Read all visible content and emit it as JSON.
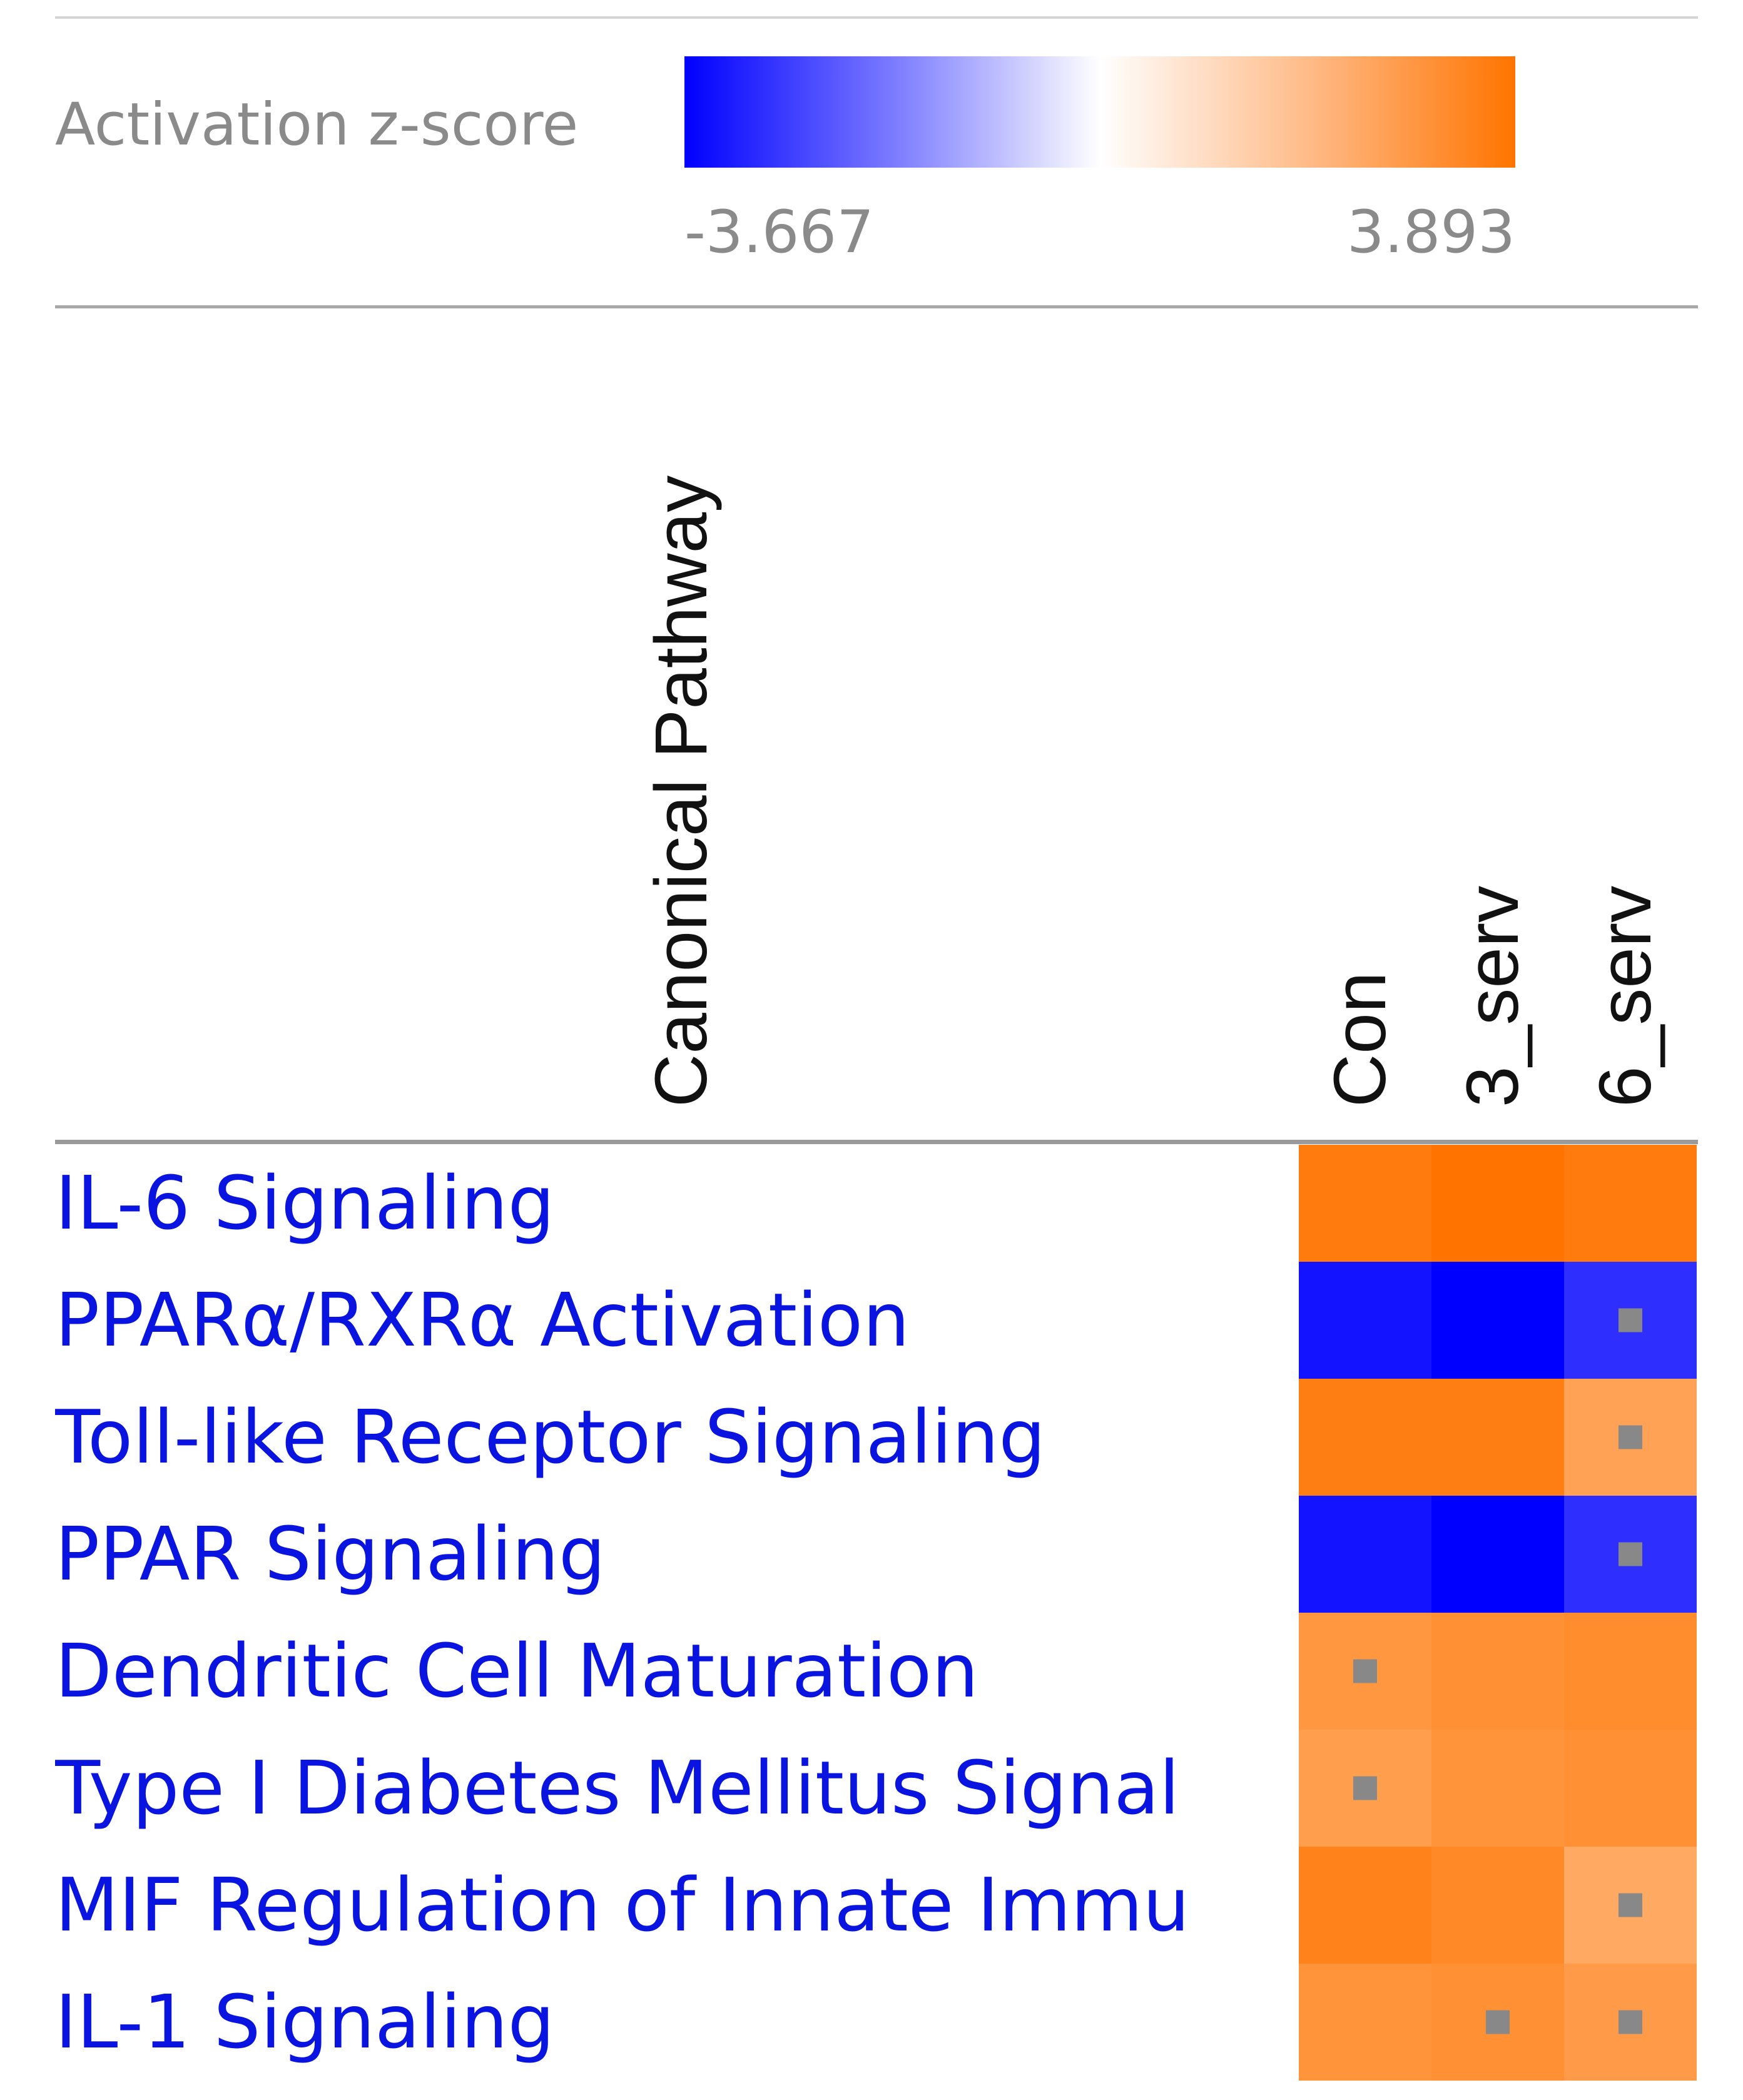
{
  "chart_data": {
    "type": "heatmap",
    "legend": {
      "title": "Activation z-score",
      "min_label": "-3.667",
      "max_label": "3.893",
      "min": -3.667,
      "max": 3.893,
      "low_color": "#0000ff",
      "mid_color": "#ffffff",
      "high_color": "#ff7400"
    },
    "row_axis_label": "Canonical Pathway",
    "columns": [
      "Con",
      "3_serv",
      "6_serv"
    ],
    "rows": [
      "IL-6 Signaling",
      "PPARα/RXRα Activation",
      "Toll-like Receptor Signaling",
      "PPAR Signaling",
      "Dendritic Cell Maturation",
      "Type I Diabetes Mellitus Signal",
      "MIF Regulation of Innate Immu",
      "IL-1 Signaling"
    ],
    "values": [
      [
        3.7,
        3.893,
        3.7
      ],
      [
        -3.4,
        -3.667,
        -3.0
      ],
      [
        3.6,
        3.6,
        2.6
      ],
      [
        -3.4,
        -3.667,
        -3.0
      ],
      [
        2.9,
        3.1,
        3.2
      ],
      [
        2.7,
        3.0,
        3.1
      ],
      [
        3.5,
        3.3,
        2.4
      ],
      [
        3.0,
        3.1,
        2.8
      ]
    ],
    "marked": [
      [
        false,
        false,
        false
      ],
      [
        false,
        false,
        true
      ],
      [
        false,
        false,
        true
      ],
      [
        false,
        false,
        true
      ],
      [
        true,
        false,
        false
      ],
      [
        true,
        false,
        false
      ],
      [
        false,
        false,
        true
      ],
      [
        false,
        true,
        true
      ]
    ],
    "marker_color": "#888888"
  }
}
